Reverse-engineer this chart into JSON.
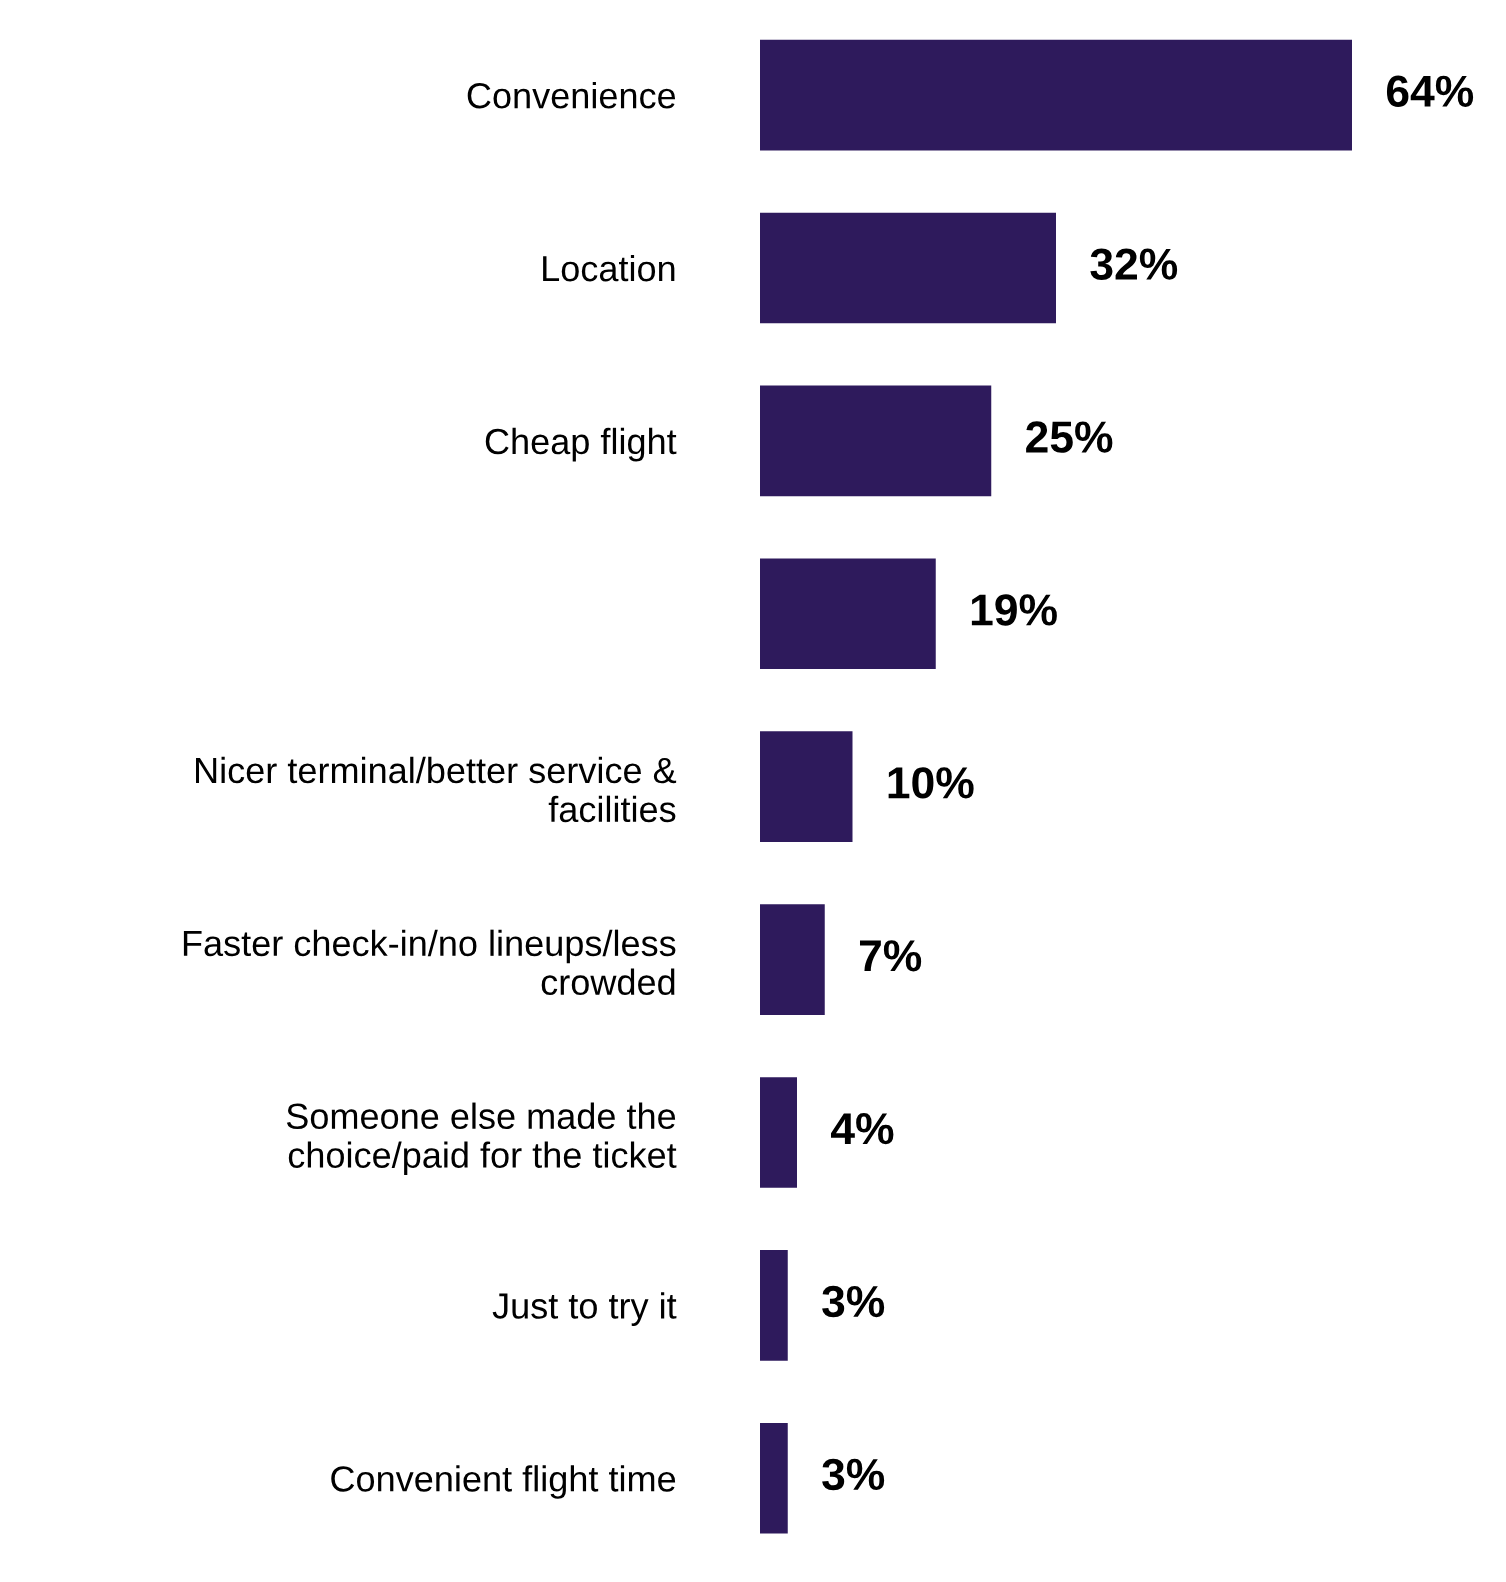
{
  "chart_data": {
    "type": "bar",
    "orientation": "horizontal",
    "categories": [
      "Convenience",
      "Location",
      "Cheap flight",
      null,
      "Nicer terminal/better service &\nfacilities",
      "Faster check-in/no lineups/less\ncrowded",
      "Someone else made the\nchoice/paid for the ticket",
      "Just to try it",
      "Convenient flight time"
    ],
    "values": [
      64,
      32,
      25,
      19,
      10,
      7,
      4,
      3,
      3
    ],
    "value_labels": [
      "64%",
      "32%",
      "25%",
      "19%",
      "10%",
      "7%",
      "4%",
      "3%",
      "3%"
    ],
    "color": "#2e1a5c",
    "grid": false,
    "legend": false
  }
}
